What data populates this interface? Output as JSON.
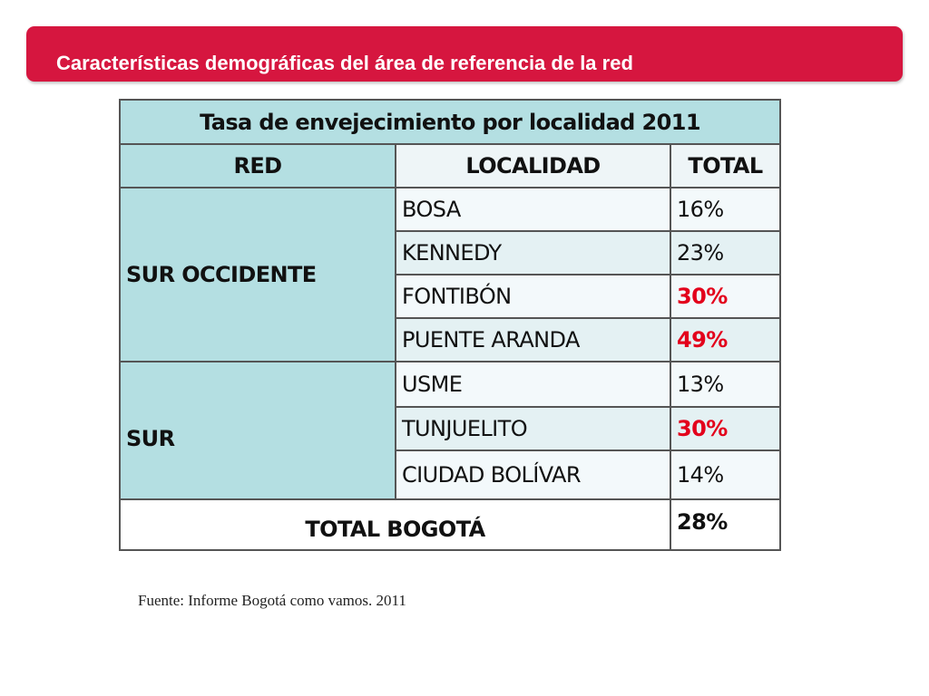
{
  "slide": {
    "banner_title": "Características demográficas del área de referencia de la red",
    "source_note": "Fuente: Informe Bogotá como vamos. 2011",
    "colors": {
      "banner": "#d6163f",
      "header_fill": "#b4dfe2",
      "highlight_text": "#e3001b"
    }
  },
  "table": {
    "title": "Tasa de envejecimiento por localidad 2011",
    "headers": {
      "red": "RED",
      "localidad": "LOCALIDAD",
      "total": "TOTAL"
    },
    "groups": [
      {
        "red": "SUR OCCIDENTE",
        "rows": [
          {
            "localidad": "BOSA",
            "total": "16%",
            "highlight": false
          },
          {
            "localidad": "KENNEDY",
            "total": "23%",
            "highlight": false
          },
          {
            "localidad": "FONTIBÓN",
            "total": "30%",
            "highlight": true
          },
          {
            "localidad": "PUENTE ARANDA",
            "total": "49%",
            "highlight": true
          }
        ]
      },
      {
        "red": "SUR",
        "rows": [
          {
            "localidad": "USME",
            "total": "13%",
            "highlight": false
          },
          {
            "localidad": "TUNJUELITO",
            "total": "30%",
            "highlight": true
          },
          {
            "localidad": "CIUDAD BOLÍVAR",
            "total": "14%",
            "highlight": false
          }
        ]
      }
    ],
    "footer": {
      "label": "TOTAL BOGOTÁ",
      "total": "28%"
    }
  }
}
